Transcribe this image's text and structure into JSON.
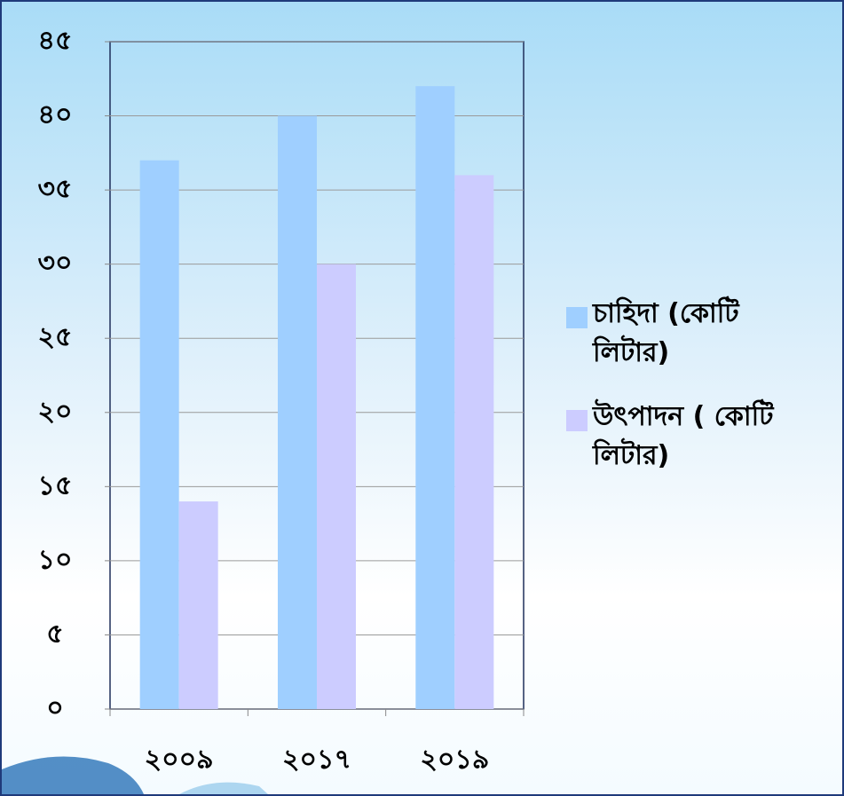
{
  "chart_data": {
    "type": "bar",
    "categories": [
      "২০০৯",
      "২০১৭",
      "২০১৯"
    ],
    "series": [
      {
        "name": "চাহিদা (কোটি লিটার)",
        "color": "#9fcfff",
        "values": [
          37,
          40,
          42
        ]
      },
      {
        "name": "উৎপাদন ( কোটি লিটার)",
        "color": "#ccccff",
        "values": [
          14,
          30,
          36
        ]
      }
    ],
    "ylim": [
      0,
      45
    ],
    "yticks": [
      {
        "value": 0,
        "label": "০"
      },
      {
        "value": 5,
        "label": "৫"
      },
      {
        "value": 10,
        "label": "১০"
      },
      {
        "value": 15,
        "label": "১৫"
      },
      {
        "value": 20,
        "label": "২০"
      },
      {
        "value": 25,
        "label": "২৫"
      },
      {
        "value": 30,
        "label": "৩০"
      },
      {
        "value": 35,
        "label": "৩৫"
      },
      {
        "value": 40,
        "label": "৪০"
      },
      {
        "value": 45,
        "label": "৪৫"
      }
    ],
    "grid": true,
    "legend": "right"
  }
}
